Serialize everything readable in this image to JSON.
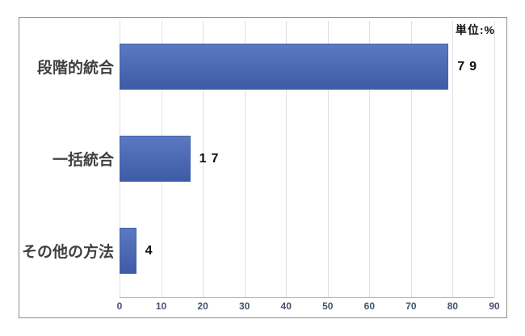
{
  "chart": {
    "unit_label": "単位:%"
  },
  "chart_data": {
    "type": "bar",
    "orientation": "horizontal",
    "title": "",
    "categories": [
      "段階的統合",
      "一括統合",
      "その他の方法"
    ],
    "values": [
      79,
      17,
      4
    ],
    "value_labels": [
      "79",
      "17",
      "4"
    ],
    "unit": "%",
    "xlim": [
      0,
      90
    ],
    "xticks": [
      0,
      10,
      20,
      30,
      40,
      50,
      60,
      70,
      80,
      90
    ],
    "grid": "vertical-major-gridlines",
    "legend": "none",
    "colors": {
      "bar_gradient_top": "#5b79c2",
      "bar_gradient_bottom": "#3e5ba6",
      "bar_border": "#4565ab",
      "gridline": "#dfe1e5",
      "axis_line": "#b3b3b3",
      "tick_label": "#44546a",
      "category_label": "#404040",
      "value_label": "#111111",
      "frame_border": "#8f8f8f"
    }
  }
}
